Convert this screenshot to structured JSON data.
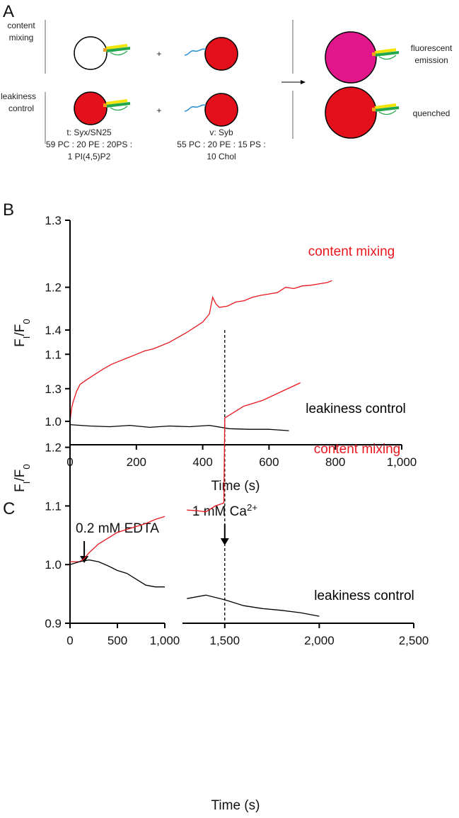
{
  "panels": [
    "A",
    "B",
    "C"
  ],
  "diagram": {
    "row_labels": [
      [
        "content",
        "mixing"
      ],
      [
        "leakiness",
        "control"
      ]
    ],
    "operator": "+",
    "t_vesicle": [
      "t: Syx/SN25",
      "59 PC : 20 PE : 20PS :",
      "1 PI(4,5)P2"
    ],
    "v_vesicle": [
      "v: Syb",
      "55 PC : 20 PE : 15 PS :",
      "10 Chol"
    ],
    "outcomes": [
      [
        "fluorescent",
        "emission"
      ],
      [
        "quenched"
      ]
    ]
  },
  "chart_data": [
    {
      "type": "line",
      "xlabel": "Time (s)",
      "ylabel": [
        {
          "text": "F"
        },
        {
          "text": "I",
          "sub": true
        },
        {
          "text": "/F"
        },
        {
          "text": "0",
          "sub": true
        }
      ],
      "xlim": [
        0,
        1000
      ],
      "ylim": [
        0.965,
        1.3
      ],
      "xticks": [
        0,
        200,
        400,
        600,
        800,
        {
          "value": 1000,
          "label": "1,000"
        }
      ],
      "yticks": [
        {
          "value": 1,
          "label": "1.0"
        },
        1.1,
        1.2,
        1.3
      ],
      "series": [
        {
          "name": "content mixing",
          "color": "#e8161e",
          "x": [
            0,
            5,
            10,
            20,
            30,
            50,
            75,
            100,
            125,
            150,
            175,
            200,
            225,
            250,
            275,
            300,
            325,
            350,
            375,
            400,
            420,
            430,
            440,
            450,
            475,
            500,
            525,
            550,
            575,
            600,
            625,
            650,
            675,
            700,
            725,
            750,
            775,
            790
          ],
          "values": [
            1.0,
            1.02,
            1.03,
            1.045,
            1.055,
            1.062,
            1.07,
            1.078,
            1.085,
            1.09,
            1.095,
            1.1,
            1.105,
            1.108,
            1.113,
            1.118,
            1.125,
            1.132,
            1.14,
            1.148,
            1.16,
            1.185,
            1.175,
            1.17,
            1.172,
            1.178,
            1.18,
            1.185,
            1.188,
            1.19,
            1.192,
            1.2,
            1.198,
            1.202,
            1.203,
            1.205,
            1.207,
            1.21
          ]
        },
        {
          "name": "leakiness control",
          "color": "#000000",
          "x": [
            0,
            60,
            120,
            180,
            240,
            300,
            360,
            420,
            480,
            540,
            600,
            660
          ],
          "values": [
            0.995,
            0.993,
            0.992,
            0.994,
            0.991,
            0.993,
            0.992,
            0.994,
            0.989,
            0.988,
            0.988,
            0.986
          ]
        }
      ]
    },
    {
      "type": "line",
      "xlabel": "Time (s)",
      "ylabel": [
        {
          "text": "F"
        },
        {
          "text": "I",
          "sub": true
        },
        {
          "text": "/F"
        },
        {
          "text": "0",
          "sub": true
        }
      ],
      "xlim": [
        0,
        2500
      ],
      "x_break": [
        1000,
        1280
      ],
      "ylim": [
        0.9,
        1.4
      ],
      "xticks": [
        0,
        500,
        {
          "value": 1000,
          "label": "1,000"
        },
        {
          "value": 1500,
          "label": "1,500"
        },
        {
          "value": 2000,
          "label": "2,000"
        },
        {
          "value": 2500,
          "label": "2,500"
        }
      ],
      "yticks": [
        0.9,
        {
          "value": 1,
          "label": "1.0"
        },
        1.1,
        1.2,
        1.3,
        1.4
      ],
      "series": [
        {
          "name": "content mixing",
          "color": "#e8161e",
          "x": [
            0,
            100,
            150,
            200,
            300,
            400,
            500,
            600,
            700,
            800,
            900,
            1000,
            null,
            1300,
            1350,
            1400,
            1450,
            1495,
            1500,
            1550,
            1600,
            1700,
            1800,
            1900
          ],
          "values": [
            1.005,
            1.005,
            1.01,
            1.02,
            1.035,
            1.045,
            1.055,
            1.06,
            1.065,
            1.07,
            1.077,
            1.082,
            null,
            1.093,
            1.092,
            1.09,
            1.1,
            1.105,
            1.25,
            1.26,
            1.27,
            1.28,
            1.295,
            1.31
          ]
        },
        {
          "name": "leakiness control",
          "color": "#000000",
          "x": [
            0,
            100,
            200,
            300,
            400,
            500,
            600,
            700,
            800,
            900,
            1000,
            null,
            1300,
            1400,
            1500,
            1600,
            1700,
            1800,
            1900,
            2000
          ],
          "values": [
            1.0,
            1.005,
            1.008,
            1.005,
            0.998,
            0.99,
            0.985,
            0.975,
            0.965,
            0.962,
            0.962,
            null,
            0.942,
            0.948,
            0.94,
            0.93,
            0.925,
            0.922,
            0.918,
            0.912
          ]
        }
      ],
      "events": [
        {
          "label": [
            {
              "text": "0.2 mM EDTA"
            }
          ],
          "x": 150
        },
        {
          "label": [
            {
              "text": "1 mM Ca"
            },
            {
              "text": "2+",
              "sup": true
            }
          ],
          "x": 1500,
          "dashed": true
        }
      ]
    }
  ]
}
